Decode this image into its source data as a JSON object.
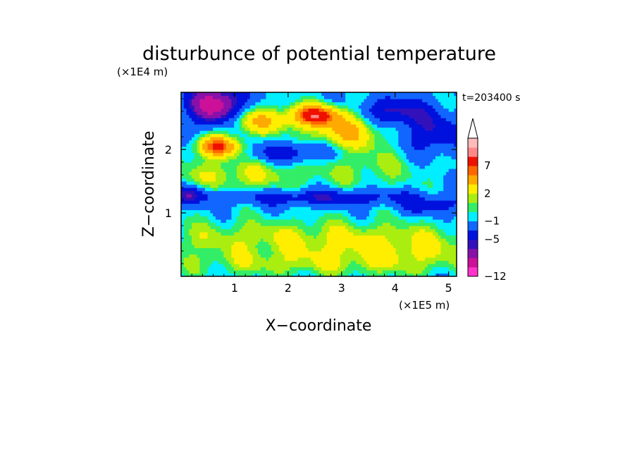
{
  "chart_data": {
    "type": "heatmap",
    "title": "disturbunce of potential temperature",
    "xlabel": "X−coordinate",
    "ylabel": "Z−coordinate",
    "x_unit": "(×1E5 m)",
    "y_unit": "(×1E4 m)",
    "time_label": "t=203400 s",
    "xlim": [
      0,
      5.15
    ],
    "ylim": [
      0,
      2.9
    ],
    "x_ticks": [
      1,
      2,
      3,
      4,
      5
    ],
    "x_tick_labels": [
      "1",
      "2",
      "3",
      "4",
      "5"
    ],
    "y_ticks": [
      1,
      2
    ],
    "y_tick_labels": [
      "1",
      "2"
    ],
    "colorbar": {
      "levels": [
        -12,
        -10,
        -8,
        -6,
        -5,
        -3,
        -1,
        0,
        1,
        2,
        4,
        6,
        7,
        9,
        11
      ],
      "tick_labels": [
        "−12",
        "−5",
        "−1",
        "2",
        "7"
      ],
      "colors": [
        "#ff33cc",
        "#cc1199",
        "#8811aa",
        "#3311bb",
        "#0011dd",
        "#1166ff",
        "#00eeff",
        "#33ee66",
        "#aaee11",
        "#ffee00",
        "#ffaa00",
        "#ff6600",
        "#ee1100",
        "#ff8888",
        "#ffbbbb"
      ],
      "extend_top_color": "#ffffff"
    },
    "background_level": -1,
    "features": [
      {
        "x": 0.65,
        "z": 2.7,
        "sx": 0.35,
        "sz": 0.22,
        "value": -10
      },
      {
        "x": 0.7,
        "z": 2.05,
        "sx": 0.3,
        "sz": 0.12,
        "value": 7
      },
      {
        "x": 1.4,
        "z": 2.45,
        "sx": 0.45,
        "sz": 0.15,
        "value": 4
      },
      {
        "x": 2.5,
        "z": 2.55,
        "sx": 0.35,
        "sz": 0.12,
        "value": 7
      },
      {
        "x": 2.1,
        "z": 1.95,
        "sx": 0.6,
        "sz": 0.12,
        "value": -5
      },
      {
        "x": 3.1,
        "z": 2.3,
        "sx": 0.5,
        "sz": 0.2,
        "value": 4
      },
      {
        "x": 3.95,
        "z": 2.6,
        "sx": 0.4,
        "sz": 0.15,
        "value": -6
      },
      {
        "x": 4.7,
        "z": 2.25,
        "sx": 0.4,
        "sz": 0.25,
        "value": -5
      },
      {
        "x": 1.0,
        "z": 1.6,
        "sx": 0.9,
        "sz": 0.2,
        "value": 2
      },
      {
        "x": 3.5,
        "z": 1.75,
        "sx": 0.9,
        "sz": 0.25,
        "value": 1
      },
      {
        "x": 2.6,
        "z": 1.25,
        "sx": 1.4,
        "sz": 0.09,
        "value": -5
      },
      {
        "x": 0.2,
        "z": 1.3,
        "sx": 0.25,
        "sz": 0.1,
        "value": -5
      },
      {
        "x": 4.7,
        "z": 1.1,
        "sx": 0.4,
        "sz": 0.1,
        "value": -4
      },
      {
        "x": 2.5,
        "z": 0.6,
        "sx": 2.6,
        "sz": 0.22,
        "value": 2
      },
      {
        "x": 1.8,
        "z": 0.2,
        "sx": 1.6,
        "sz": 0.15,
        "value": 1
      },
      {
        "x": 4.2,
        "z": 0.3,
        "sx": 1.0,
        "sz": 0.2,
        "value": 1
      }
    ]
  }
}
